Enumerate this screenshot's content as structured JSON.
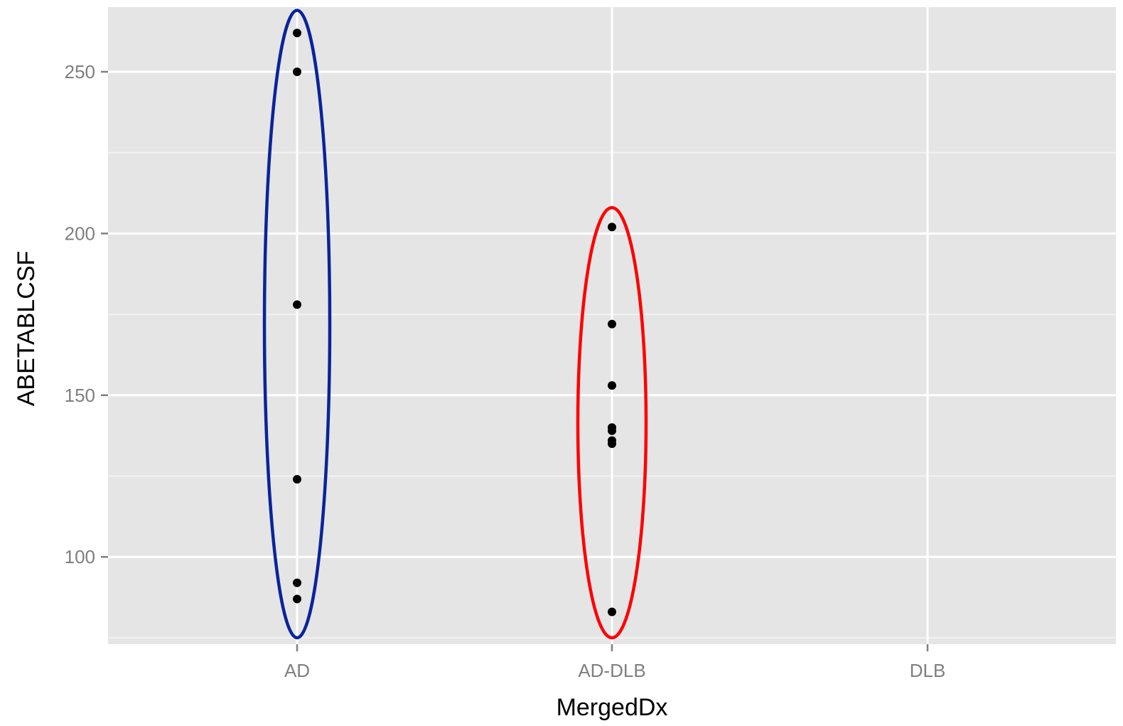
{
  "chart_data": {
    "type": "scatter",
    "xlabel": "MergedDx",
    "ylabel": "ABETABLCSF",
    "categories": [
      "AD",
      "AD-DLB",
      "DLB"
    ],
    "ylim": [
      73,
      270
    ],
    "yticks": [
      100,
      150,
      200,
      250
    ],
    "grid": true,
    "points": [
      {
        "x": "AD",
        "y": 262
      },
      {
        "x": "AD",
        "y": 250
      },
      {
        "x": "AD",
        "y": 178
      },
      {
        "x": "AD",
        "y": 124
      },
      {
        "x": "AD",
        "y": 92
      },
      {
        "x": "AD",
        "y": 87
      },
      {
        "x": "AD-DLB",
        "y": 202
      },
      {
        "x": "AD-DLB",
        "y": 172
      },
      {
        "x": "AD-DLB",
        "y": 153
      },
      {
        "x": "AD-DLB",
        "y": 140
      },
      {
        "x": "AD-DLB",
        "y": 139
      },
      {
        "x": "AD-DLB",
        "y": 136
      },
      {
        "x": "AD-DLB",
        "y": 135
      },
      {
        "x": "AD-DLB",
        "y": 83
      }
    ],
    "annotations": [
      {
        "shape": "ellipse",
        "category": "AD",
        "y_range": [
          75,
          269
        ],
        "color": "#0a249a"
      },
      {
        "shape": "ellipse",
        "category": "AD-DLB",
        "y_range": [
          75,
          208
        ],
        "color": "#ff0000"
      }
    ],
    "colors": {
      "panel_background": "#e5e5e5",
      "gridline": "#ffffff",
      "point": "#000000",
      "tick_label": "#7f7f7f"
    }
  }
}
